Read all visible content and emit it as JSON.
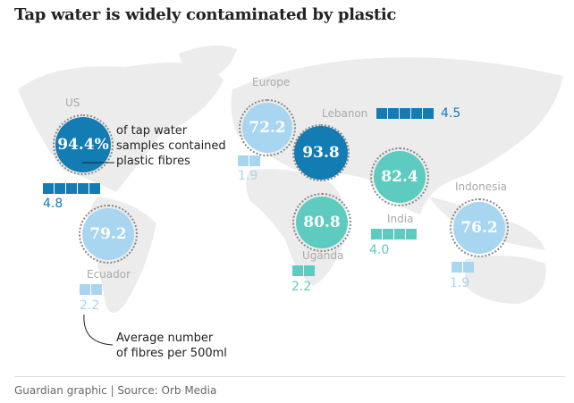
{
  "title": "Tap water is widely contaminated by plastic",
  "colors": {
    "dark_blue": "#127cb3",
    "light_blue": "#a8d5ef",
    "teal": "#5ecbc0",
    "map": "#ececec"
  },
  "locations": {
    "us": {
      "label": "US",
      "percent": "94.4%",
      "fibres": 4.8,
      "fibres_text": "4.8",
      "color": "dark_blue"
    },
    "europe": {
      "label": "Europe",
      "percent": "72.2",
      "fibres": 1.9,
      "fibres_text": "1.9",
      "color": "light_blue"
    },
    "lebanon": {
      "label": "Lebanon",
      "percent": "93.8",
      "fibres": 4.5,
      "fibres_text": "4.5",
      "color": "dark_blue"
    },
    "india": {
      "label": "India",
      "percent": "82.4",
      "fibres": 4.0,
      "fibres_text": "4.0",
      "color": "teal"
    },
    "uganda": {
      "label": "Uganda",
      "percent": "80.8",
      "fibres": 2.2,
      "fibres_text": "2.2",
      "color": "teal"
    },
    "ecuador": {
      "label": "Ecuador",
      "percent": "79.2",
      "fibres": 2.2,
      "fibres_text": "2.2",
      "color": "light_blue"
    },
    "indonesia": {
      "label": "Indonesia",
      "percent": "76.2",
      "fibres": 1.9,
      "fibres_text": "1.9",
      "color": "light_blue"
    }
  },
  "annotations": {
    "percent_note": [
      "of tap water",
      "samples contained",
      "plastic fibres"
    ],
    "fibres_note": [
      "Average number",
      "of fibres per 500ml"
    ]
  },
  "footer": "Guardian graphic | Source: Orb Media"
}
